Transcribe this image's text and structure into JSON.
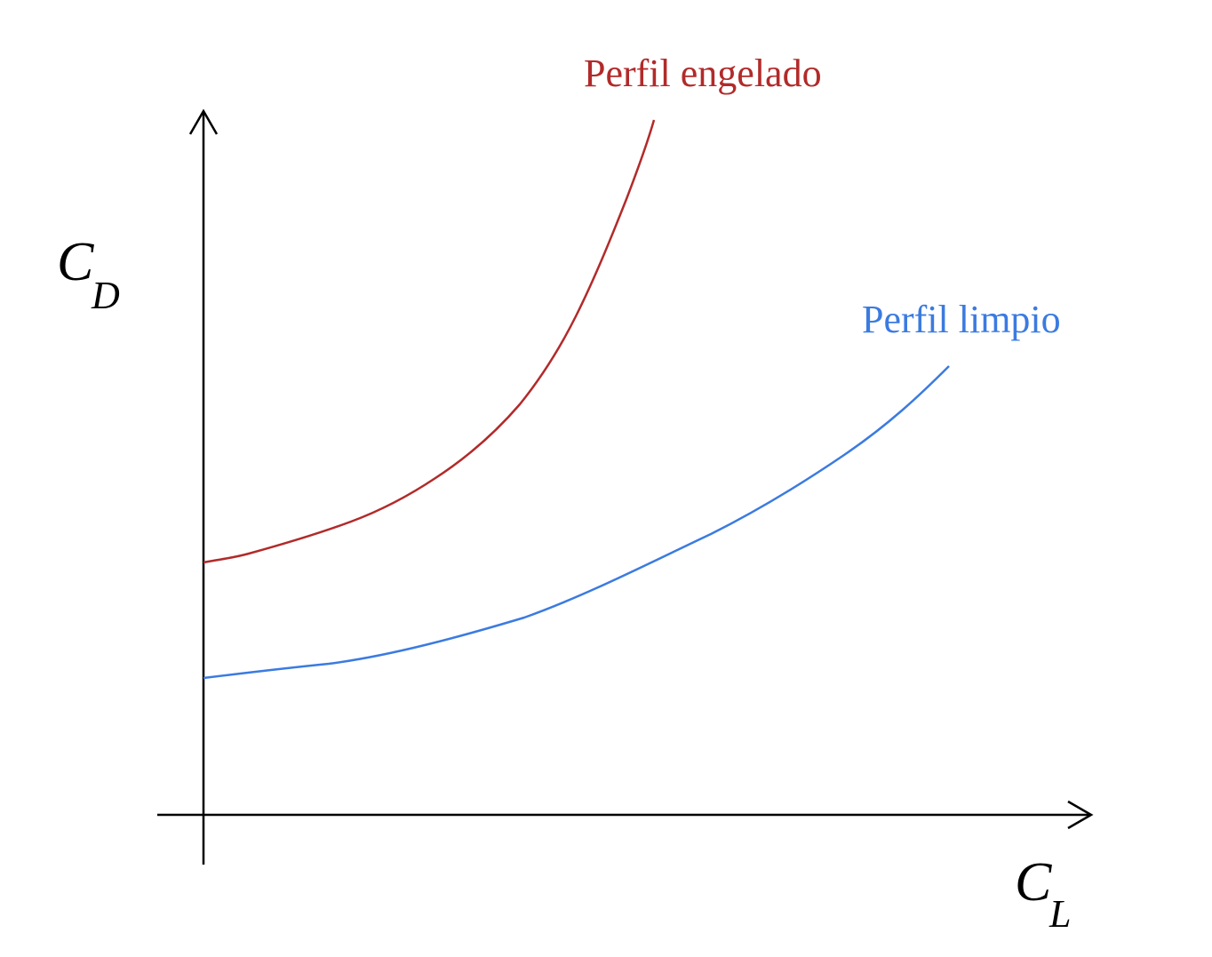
{
  "curves": [
    {
      "label": "Perfil engelado"
    },
    {
      "label": "Perfil limpio"
    }
  ],
  "axes": {
    "y": {
      "symbol": "C",
      "subscript": "D"
    },
    "x": {
      "symbol": "C",
      "subscript": "L"
    }
  }
}
